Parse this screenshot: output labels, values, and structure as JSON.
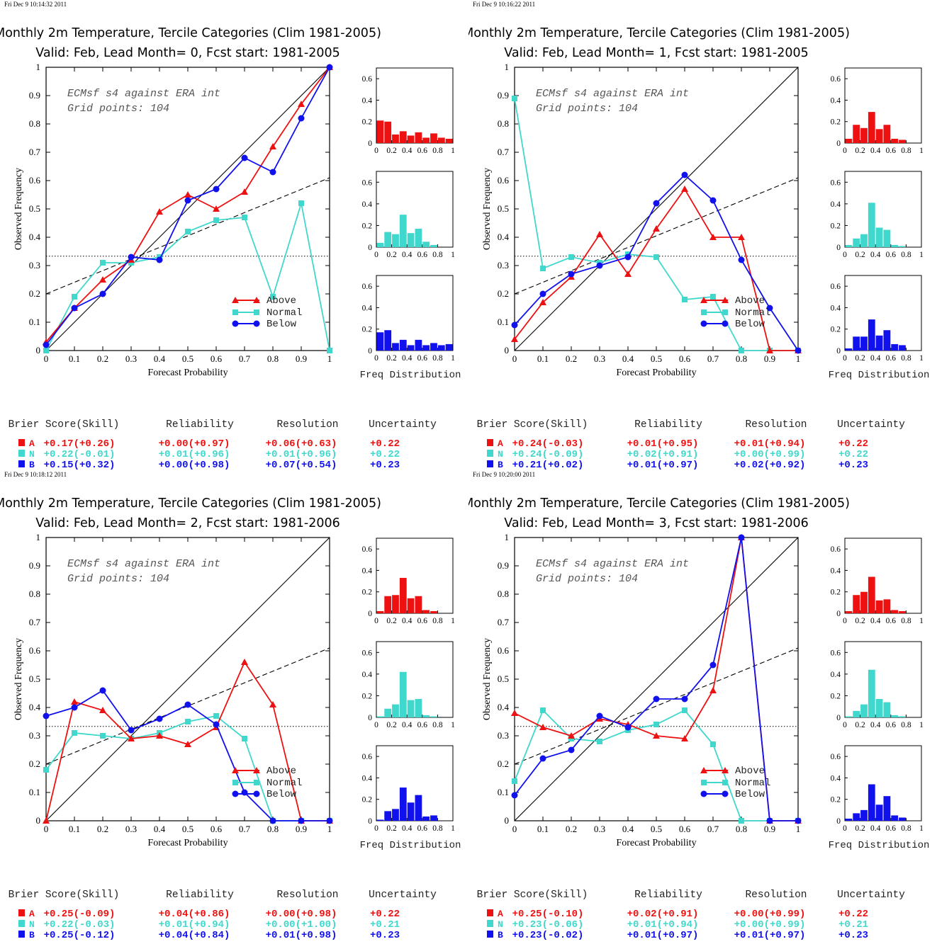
{
  "colors": {
    "above": "#ee1111",
    "normal": "#40d8cc",
    "below": "#1111ee",
    "black": "#000000"
  },
  "labels": {
    "ylabel": "Observed Frequency",
    "xlabel": "Forecast Probability",
    "freq": "Freq Distribution",
    "legend": [
      "Above",
      "Normal",
      "Below"
    ],
    "note_line1": "ECMsf s4 against ERA int",
    "note_line2": "Grid points:  104",
    "score_headers": [
      "Brier Score(Skill)",
      "Reliability",
      "Resolution",
      "Uncertainty"
    ],
    "cat_letters": [
      "A",
      "N",
      "B"
    ]
  },
  "x_ticks": [
    "0",
    "0.1",
    "0.2",
    "0.3",
    "0.4",
    "0.5",
    "0.6",
    "0.7",
    "0.8",
    "0.9",
    "1"
  ],
  "y_ticks": [
    "0",
    "0.1",
    "0.2",
    "0.3",
    "0.4",
    "0.5",
    "0.6",
    "0.7",
    "0.8",
    "0.9",
    "1"
  ],
  "hist_x_ticks": [
    "0",
    "0.2",
    "0.4",
    "0.6",
    "0.8",
    "1"
  ],
  "hist_y_ticks": [
    "0",
    "0.2",
    "0.4",
    "0.6"
  ],
  "chart_data": [
    {
      "type": "line",
      "timestamp": "Fri Dec  9 10:14:32 2011",
      "title": "Monthly 2m Temperature, Tercile Categories (Clim 1981-2005)",
      "subtitle": "Valid: Feb, Lead Month= 0, Fcst start: 1981-2005",
      "xlabel": "Forecast Probability",
      "ylabel": "Observed Frequency",
      "xlim": [
        0,
        1
      ],
      "ylim": [
        0,
        1
      ],
      "clim_line": 0.333,
      "skill_line": [
        [
          0,
          0.2
        ],
        [
          1,
          0.61
        ]
      ],
      "series": [
        {
          "name": "Above",
          "x": [
            0,
            0.1,
            0.2,
            0.3,
            0.4,
            0.5,
            0.6,
            0.7,
            0.8,
            0.9,
            1
          ],
          "y": [
            0.03,
            0.15,
            0.25,
            0.32,
            0.49,
            0.55,
            0.5,
            0.56,
            0.72,
            0.87,
            1
          ]
        },
        {
          "name": "Normal",
          "x": [
            0,
            0.1,
            0.2,
            0.3,
            0.4,
            0.5,
            0.6,
            0.7,
            0.8,
            0.9,
            1
          ],
          "y": [
            0,
            0.19,
            0.31,
            0.31,
            0.33,
            0.42,
            0.46,
            0.47,
            0.19,
            0.52,
            0
          ]
        },
        {
          "name": "Below",
          "x": [
            0,
            0.1,
            0.2,
            0.3,
            0.4,
            0.5,
            0.6,
            0.7,
            0.8,
            0.9,
            1
          ],
          "y": [
            0.02,
            0.15,
            0.2,
            0.33,
            0.32,
            0.53,
            0.57,
            0.68,
            0.63,
            0.82,
            1
          ]
        }
      ],
      "histograms": [
        {
          "name": "Above",
          "values": [
            0.21,
            0.2,
            0.08,
            0.11,
            0.07,
            0.1,
            0.05,
            0.09,
            0.05,
            0.04
          ]
        },
        {
          "name": "Normal",
          "values": [
            0.04,
            0.14,
            0.12,
            0.3,
            0.13,
            0.17,
            0.05,
            0.02,
            0,
            0
          ]
        },
        {
          "name": "Below",
          "values": [
            0.17,
            0.19,
            0.07,
            0.1,
            0.05,
            0.1,
            0.05,
            0.07,
            0.05,
            0.06
          ]
        }
      ],
      "scores": [
        {
          "cat": "A",
          "brier": "+0.17(+0.26)",
          "reliability": "+0.00(+0.97)",
          "resolution": "+0.06(+0.63)",
          "uncertainty": "+0.22"
        },
        {
          "cat": "N",
          "brier": "+0.22(-0.01)",
          "reliability": "+0.01(+0.96)",
          "resolution": "+0.01(+0.96)",
          "uncertainty": "+0.22"
        },
        {
          "cat": "B",
          "brier": "+0.15(+0.32)",
          "reliability": "+0.00(+0.98)",
          "resolution": "+0.07(+0.54)",
          "uncertainty": "+0.23"
        }
      ]
    },
    {
      "type": "line",
      "timestamp": "Fri Dec  9 10:16:22 2011",
      "title": "Monthly 2m Temperature, Tercile Categories (Clim 1981-2005)",
      "subtitle": "Valid: Feb, Lead Month= 1, Fcst start: 1981-2005",
      "xlabel": "Forecast Probability",
      "ylabel": "Observed Frequency",
      "xlim": [
        0,
        1
      ],
      "ylim": [
        0,
        1
      ],
      "clim_line": 0.333,
      "skill_line": [
        [
          0,
          0.2
        ],
        [
          1,
          0.61
        ]
      ],
      "series": [
        {
          "name": "Above",
          "x": [
            0,
            0.1,
            0.2,
            0.3,
            0.4,
            0.5,
            0.6,
            0.7,
            0.8,
            0.9,
            1
          ],
          "y": [
            0.04,
            0.17,
            0.26,
            0.41,
            0.27,
            0.43,
            0.57,
            0.4,
            0.4,
            0,
            0
          ]
        },
        {
          "name": "Normal",
          "x": [
            0,
            0.1,
            0.2,
            0.3,
            0.4,
            0.5,
            0.6,
            0.7,
            0.8,
            0.9,
            1
          ],
          "y": [
            0.89,
            0.29,
            0.33,
            0.31,
            0.34,
            0.33,
            0.18,
            0.19,
            0,
            0,
            0
          ]
        },
        {
          "name": "Below",
          "x": [
            0,
            0.1,
            0.2,
            0.3,
            0.4,
            0.5,
            0.6,
            0.7,
            0.8,
            0.9,
            1
          ],
          "y": [
            0.09,
            0.2,
            0.27,
            0.3,
            0.33,
            0.52,
            0.62,
            0.53,
            0.32,
            0.15,
            0
          ]
        }
      ],
      "histograms": [
        {
          "name": "Above",
          "values": [
            0.04,
            0.17,
            0.14,
            0.29,
            0.13,
            0.17,
            0.04,
            0.03,
            0,
            0
          ]
        },
        {
          "name": "Normal",
          "values": [
            0.02,
            0.08,
            0.12,
            0.41,
            0.18,
            0.16,
            0.02,
            0.01,
            0,
            0
          ]
        },
        {
          "name": "Below",
          "values": [
            0.02,
            0.13,
            0.13,
            0.29,
            0.14,
            0.19,
            0.06,
            0.05,
            0,
            0
          ]
        }
      ],
      "scores": [
        {
          "cat": "A",
          "brier": "+0.24(-0.03)",
          "reliability": "+0.01(+0.95)",
          "resolution": "+0.01(+0.94)",
          "uncertainty": "+0.22"
        },
        {
          "cat": "N",
          "brier": "+0.24(-0.09)",
          "reliability": "+0.02(+0.91)",
          "resolution": "+0.00(+0.99)",
          "uncertainty": "+0.22"
        },
        {
          "cat": "B",
          "brier": "+0.21(+0.02)",
          "reliability": "+0.01(+0.97)",
          "resolution": "+0.02(+0.92)",
          "uncertainty": "+0.23"
        }
      ]
    },
    {
      "type": "line",
      "timestamp": "Fri Dec  9 10:18:12 2011",
      "title": "Monthly 2m Temperature, Tercile Categories (Clim 1981-2005)",
      "subtitle": "Valid: Feb, Lead Month= 2, Fcst start: 1981-2006",
      "xlabel": "Forecast Probability",
      "ylabel": "Observed Frequency",
      "xlim": [
        0,
        1
      ],
      "ylim": [
        0,
        1
      ],
      "clim_line": 0.333,
      "skill_line": [
        [
          0,
          0.2
        ],
        [
          1,
          0.61
        ]
      ],
      "series": [
        {
          "name": "Above",
          "x": [
            0,
            0.1,
            0.2,
            0.3,
            0.4,
            0.5,
            0.6,
            0.7,
            0.8,
            0.9,
            1
          ],
          "y": [
            0,
            0.42,
            0.39,
            0.29,
            0.3,
            0.27,
            0.33,
            0.56,
            0.41,
            0,
            0
          ]
        },
        {
          "name": "Normal",
          "x": [
            0,
            0.1,
            0.2,
            0.3,
            0.4,
            0.5,
            0.6,
            0.7,
            0.8,
            0.9,
            1
          ],
          "y": [
            0.18,
            0.31,
            0.3,
            0.29,
            0.31,
            0.35,
            0.37,
            0.29,
            0,
            0,
            0
          ]
        },
        {
          "name": "Below",
          "x": [
            0,
            0.1,
            0.2,
            0.3,
            0.4,
            0.5,
            0.6,
            0.7,
            0.8,
            0.9,
            1
          ],
          "y": [
            0.37,
            0.4,
            0.46,
            0.32,
            0.36,
            0.41,
            0.34,
            0.1,
            0,
            0,
            0
          ]
        }
      ],
      "histograms": [
        {
          "name": "Above",
          "values": [
            0.02,
            0.16,
            0.17,
            0.33,
            0.14,
            0.16,
            0.03,
            0.02,
            0,
            0
          ]
        },
        {
          "name": "Normal",
          "values": [
            0.01,
            0.08,
            0.12,
            0.42,
            0.16,
            0.17,
            0.02,
            0.01,
            0,
            0
          ]
        },
        {
          "name": "Below",
          "values": [
            0.01,
            0.09,
            0.11,
            0.31,
            0.17,
            0.24,
            0.04,
            0.05,
            0,
            0
          ]
        }
      ],
      "scores": [
        {
          "cat": "A",
          "brier": "+0.25(-0.09)",
          "reliability": "+0.04(+0.86)",
          "resolution": "+0.00(+0.98)",
          "uncertainty": "+0.22"
        },
        {
          "cat": "N",
          "brier": "+0.22(-0.03)",
          "reliability": "+0.01(+0.94)",
          "resolution": "+0.00(+1.00)",
          "uncertainty": "+0.21"
        },
        {
          "cat": "B",
          "brier": "+0.25(-0.12)",
          "reliability": "+0.04(+0.84)",
          "resolution": "+0.01(+0.98)",
          "uncertainty": "+0.23"
        }
      ]
    },
    {
      "type": "line",
      "timestamp": "Fri Dec  9 10:20:00 2011",
      "title": "Monthly 2m Temperature, Tercile Categories (Clim 1981-2005)",
      "subtitle": "Valid: Feb, Lead Month= 3, Fcst start: 1981-2006",
      "xlabel": "Forecast Probability",
      "ylabel": "Observed Frequency",
      "xlim": [
        0,
        1
      ],
      "ylim": [
        0,
        1
      ],
      "clim_line": 0.333,
      "skill_line": [
        [
          0,
          0.2
        ],
        [
          1,
          0.61
        ]
      ],
      "series": [
        {
          "name": "Above",
          "x": [
            0,
            0.1,
            0.2,
            0.3,
            0.4,
            0.5,
            0.6,
            0.7,
            0.8,
            0.9,
            1
          ],
          "y": [
            0.38,
            0.33,
            0.3,
            0.36,
            0.34,
            0.3,
            0.29,
            0.46,
            1,
            0,
            0
          ]
        },
        {
          "name": "Normal",
          "x": [
            0,
            0.1,
            0.2,
            0.3,
            0.4,
            0.5,
            0.6,
            0.7,
            0.8,
            0.9,
            1
          ],
          "y": [
            0.14,
            0.39,
            0.29,
            0.28,
            0.32,
            0.34,
            0.39,
            0.27,
            0,
            0,
            0
          ]
        },
        {
          "name": "Below",
          "x": [
            0,
            0.1,
            0.2,
            0.3,
            0.4,
            0.5,
            0.6,
            0.7,
            0.8,
            0.9,
            1
          ],
          "y": [
            0.09,
            0.22,
            0.25,
            0.37,
            0.33,
            0.43,
            0.43,
            0.55,
            1,
            0,
            0
          ]
        }
      ],
      "histograms": [
        {
          "name": "Above",
          "values": [
            0.02,
            0.17,
            0.2,
            0.34,
            0.12,
            0.13,
            0.03,
            0.02,
            0,
            0
          ]
        },
        {
          "name": "Normal",
          "values": [
            0.01,
            0.06,
            0.12,
            0.44,
            0.17,
            0.14,
            0.02,
            0.01,
            0,
            0
          ]
        },
        {
          "name": "Below",
          "values": [
            0.02,
            0.07,
            0.1,
            0.34,
            0.15,
            0.23,
            0.05,
            0.03,
            0,
            0
          ]
        }
      ],
      "scores": [
        {
          "cat": "A",
          "brier": "+0.25(-0.10)",
          "reliability": "+0.02(+0.91)",
          "resolution": "+0.00(+0.99)",
          "uncertainty": "+0.22"
        },
        {
          "cat": "N",
          "brier": "+0.23(-0.06)",
          "reliability": "+0.01(+0.94)",
          "resolution": "+0.00(+0.99)",
          "uncertainty": "+0.21"
        },
        {
          "cat": "B",
          "brier": "+0.23(-0.02)",
          "reliability": "+0.01(+0.97)",
          "resolution": "+0.01(+0.97)",
          "uncertainty": "+0.23"
        }
      ]
    }
  ]
}
